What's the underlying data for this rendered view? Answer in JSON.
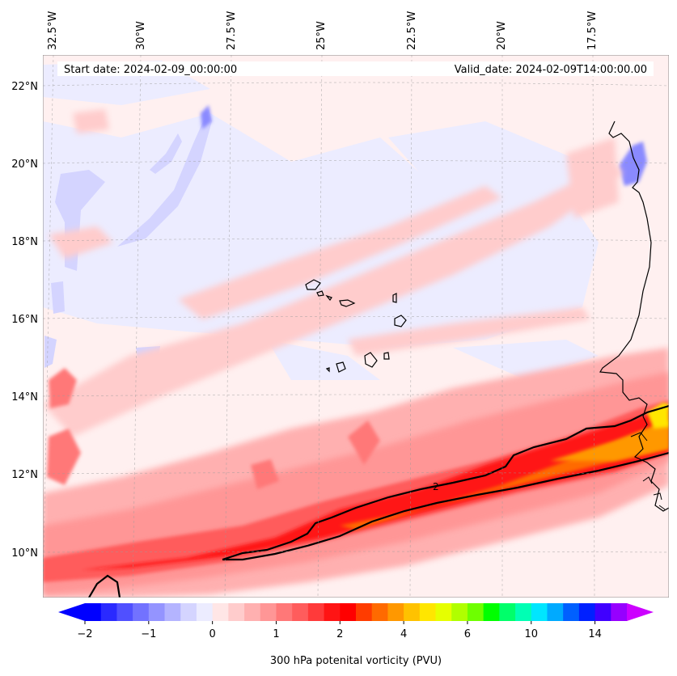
{
  "header": {
    "start_label": "Start date: 2024-02-09_00:00:00",
    "valid_label": "Valid_date: 2024-02-09T14:00:00.00"
  },
  "lon_labels": [
    "32.5°W",
    "30°W",
    "27.5°W",
    "25°W",
    "22.5°W",
    "20°W",
    "17.5°W"
  ],
  "lat_labels": [
    "22°N",
    "20°N",
    "18°N",
    "16°N",
    "14°N",
    "12°N",
    "10°N"
  ],
  "contour_label": "2",
  "colorbar": {
    "title": "300 hPa potenital vorticity (PVU)",
    "tick_labels": [
      "−2",
      "−1",
      "0",
      "1",
      "2",
      "4",
      "6",
      "10",
      "14"
    ],
    "colors": [
      "#0000ff",
      "#2a2aff",
      "#5050ff",
      "#7272ff",
      "#9494ff",
      "#b4b4ff",
      "#d4d4ff",
      "#ececff",
      "#ffe6e6",
      "#ffcccc",
      "#ffb0b0",
      "#ff9696",
      "#ff7878",
      "#ff5c5c",
      "#ff3a3a",
      "#ff1414",
      "#ff0000",
      "#ff3c00",
      "#ff6a00",
      "#ff9800",
      "#ffc200",
      "#ffe600",
      "#e6ff00",
      "#b0ff00",
      "#6eff00",
      "#00ff00",
      "#00ff6a",
      "#00ffb4",
      "#00e6ff",
      "#00aaff",
      "#0060ff",
      "#0020ff",
      "#4000ff",
      "#9600ff"
    ],
    "extend_low_color": "#0000ff",
    "extend_high_color": "#cc00ff"
  }
}
